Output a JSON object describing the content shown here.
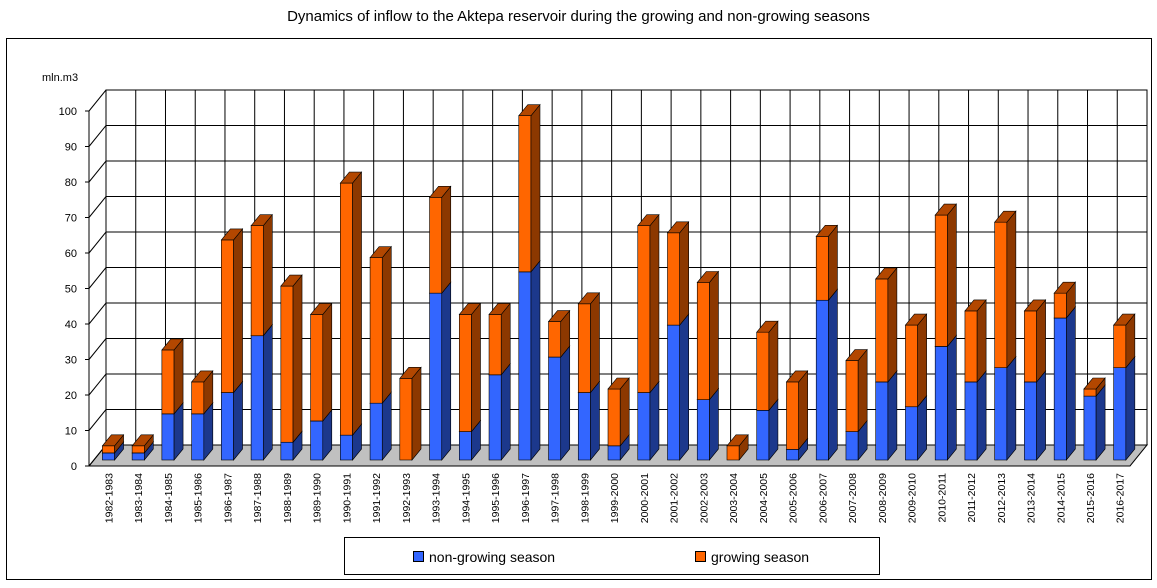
{
  "chart_data": {
    "type": "bar",
    "stacked": true,
    "style": "3d",
    "title": "Dynamics of inflow to the Aktepa reservoir during the growing and non-growing seasons",
    "ylabel": "mln.m3",
    "xlabel": "",
    "ylim": [
      0,
      100
    ],
    "yticks": [
      0,
      10,
      20,
      30,
      40,
      50,
      60,
      70,
      80,
      90,
      100
    ],
    "grid": true,
    "legend_position": "bottom",
    "categories": [
      "1982-1983",
      "1983-1984",
      "1984-1985",
      "1985-1986",
      "1986-1987",
      "1987-1988",
      "1988-1989",
      "1989-1990",
      "1990-1991",
      "1991-1992",
      "1992-1993",
      "1993-1994",
      "1994-1995",
      "1995-1996",
      "1996-1997",
      "1997-1998",
      "1998-1999",
      "1999-2000",
      "2000-2001",
      "2001-2002",
      "2002-2003",
      "2003-2004",
      "2004-2005",
      "2005-2006",
      "2006-2007",
      "2007-2008",
      "2008-2009",
      "2009-2010",
      "2010-2011",
      "2011-2012",
      "2012-2013",
      "2013-2014",
      "2014-2015",
      "2015-2016",
      "2016-2017"
    ],
    "series": [
      {
        "name": "non-growing season",
        "color": "#3366ff",
        "values": [
          2,
          2,
          13,
          13,
          19,
          35,
          5,
          11,
          7,
          16,
          0,
          47,
          8,
          24,
          53,
          29,
          19,
          4,
          19,
          38,
          17,
          0,
          14,
          3,
          45,
          8,
          22,
          15,
          32,
          22,
          26,
          22,
          40,
          18,
          26
        ]
      },
      {
        "name": "growing season",
        "color": "#ff6600",
        "values": [
          2,
          2,
          18,
          9,
          43,
          31,
          44,
          30,
          71,
          41,
          23,
          27,
          33,
          17,
          44,
          10,
          25,
          16,
          47,
          26,
          33,
          4,
          22,
          19,
          18,
          20,
          29,
          23,
          37,
          20,
          41,
          20,
          7,
          2,
          12
        ]
      }
    ]
  },
  "legend": {
    "items": [
      "non-growing season",
      "growing season"
    ]
  }
}
